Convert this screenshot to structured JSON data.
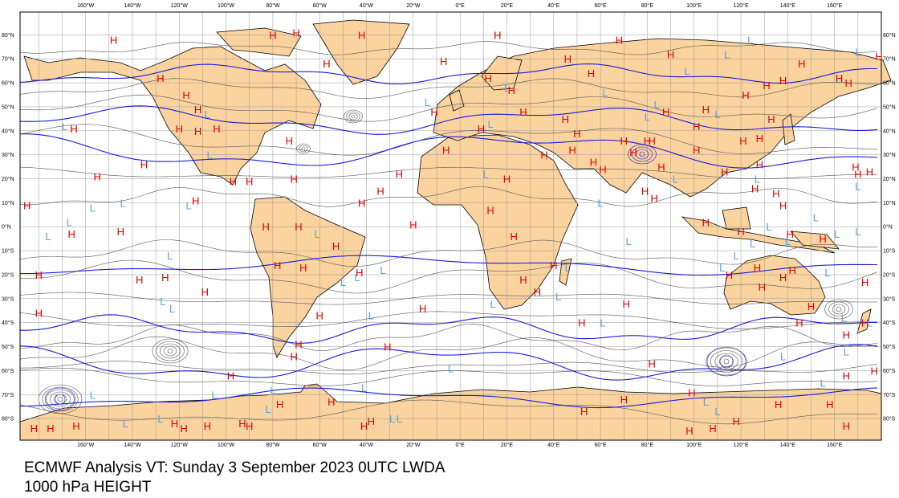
{
  "caption": {
    "line1": "ECMWF Analysis VT: Sunday 3 September 2023 0UTC LWDA",
    "line2": "1000 hPa HEIGHT"
  },
  "colors": {
    "land": "#fbd39e",
    "ocean": "#ffffff",
    "grid": "#9a9a9a",
    "coast": "#000000",
    "contour_minor": "#555555",
    "contour_major": "#1b1bd6",
    "high": "#e00000",
    "low": "#5aa0e0"
  },
  "axes": {
    "lon_labels": [
      "160°W",
      "140°W",
      "120°W",
      "100°W",
      "80°W",
      "60°W",
      "40°W",
      "20°W",
      "0°E",
      "20°E",
      "40°E",
      "60°E",
      "80°E",
      "100°E",
      "120°E",
      "140°E",
      "160°E"
    ],
    "lat_labels": [
      "80°N",
      "70°N",
      "60°N",
      "50°N",
      "40°N",
      "30°N",
      "20°N",
      "10°N",
      "0°N",
      "10°S",
      "20°S",
      "30°S",
      "40°S",
      "50°S",
      "60°S",
      "70°S",
      "80°S"
    ]
  },
  "centers": {
    "high": [
      {
        "label": "H",
        "lon": -148,
        "lat": 78
      },
      {
        "label": "H",
        "lon": -165,
        "lat": 41
      },
      {
        "label": "H",
        "lon": -135,
        "lat": 26
      },
      {
        "label": "H",
        "lon": -155,
        "lat": 21
      },
      {
        "label": "H",
        "lon": -113,
        "lat": 11
      },
      {
        "label": "H",
        "lon": -145,
        "lat": -2
      },
      {
        "label": "H",
        "lon": -185,
        "lat": 9
      },
      {
        "label": "H",
        "lon": -166,
        "lat": -3
      },
      {
        "label": "H",
        "lon": -180,
        "lat": -20
      },
      {
        "label": "H",
        "lon": -109,
        "lat": -27
      },
      {
        "label": "H",
        "lon": -126,
        "lat": -21
      },
      {
        "label": "H",
        "lon": -137,
        "lat": -22
      },
      {
        "label": "H",
        "lon": -180,
        "lat": -36
      },
      {
        "label": "H",
        "lon": -98,
        "lat": -62
      },
      {
        "label": "H",
        "lon": -122,
        "lat": -82
      },
      {
        "label": "H",
        "lon": -118,
        "lat": -84
      },
      {
        "label": "H",
        "lon": -175,
        "lat": -84
      },
      {
        "label": "H",
        "lon": -164,
        "lat": -83
      },
      {
        "label": "H",
        "lon": -108,
        "lat": -83
      },
      {
        "label": "H",
        "lon": -93,
        "lat": -82
      },
      {
        "label": "H",
        "lon": -77,
        "lat": -74
      },
      {
        "label": "H",
        "lon": -55,
        "lat": -73
      },
      {
        "label": "H",
        "lon": -90,
        "lat": -83
      },
      {
        "label": "H",
        "lon": -41,
        "lat": -83
      },
      {
        "label": "H",
        "lon": -38,
        "lat": -81
      },
      {
        "label": "H",
        "lon": -80,
        "lat": 80
      },
      {
        "label": "H",
        "lon": -70,
        "lat": 81
      },
      {
        "label": "H",
        "lon": -42,
        "lat": 80
      },
      {
        "label": "H",
        "lon": -57,
        "lat": 68
      },
      {
        "label": "H",
        "lon": -128,
        "lat": 62
      },
      {
        "label": "H",
        "lon": -117,
        "lat": 55
      },
      {
        "label": "H",
        "lon": -120,
        "lat": 41
      },
      {
        "label": "H",
        "lon": -104,
        "lat": 41
      },
      {
        "label": "H",
        "lon": -112,
        "lat": 40
      },
      {
        "label": "H",
        "lon": -112,
        "lat": 49
      },
      {
        "label": "H",
        "lon": -73,
        "lat": 36
      },
      {
        "label": "H",
        "lon": -97,
        "lat": 19
      },
      {
        "label": "H",
        "lon": -90,
        "lat": 19
      },
      {
        "label": "H",
        "lon": -71,
        "lat": 20
      },
      {
        "label": "H",
        "lon": -42,
        "lat": 10
      },
      {
        "label": "H",
        "lon": -83,
        "lat": 0
      },
      {
        "label": "H",
        "lon": -69,
        "lat": 0
      },
      {
        "label": "H",
        "lon": -53,
        "lat": -8
      },
      {
        "label": "H",
        "lon": -67,
        "lat": -17
      },
      {
        "label": "H",
        "lon": -78,
        "lat": -16
      },
      {
        "label": "H",
        "lon": -43,
        "lat": -19
      },
      {
        "label": "H",
        "lon": -60,
        "lat": -37
      },
      {
        "label": "H",
        "lon": -69,
        "lat": -49
      },
      {
        "label": "H",
        "lon": -71,
        "lat": -54
      },
      {
        "label": "H",
        "lon": -31,
        "lat": -50
      },
      {
        "label": "H",
        "lon": -16,
        "lat": -34
      },
      {
        "label": "H",
        "lon": -26,
        "lat": 22
      },
      {
        "label": "H",
        "lon": -20,
        "lat": 1
      },
      {
        "label": "H",
        "lon": -34,
        "lat": 15
      },
      {
        "label": "H",
        "lon": -11,
        "lat": 48
      },
      {
        "label": "H",
        "lon": -7,
        "lat": 69
      },
      {
        "label": "H",
        "lon": 16,
        "lat": 80
      },
      {
        "label": "H",
        "lon": 12,
        "lat": 62
      },
      {
        "label": "H",
        "lon": 22,
        "lat": 57
      },
      {
        "label": "H",
        "lon": 27,
        "lat": 48
      },
      {
        "label": "H",
        "lon": 9,
        "lat": 41
      },
      {
        "label": "H",
        "lon": -6,
        "lat": 32
      },
      {
        "label": "H",
        "lon": 36,
        "lat": 30
      },
      {
        "label": "H",
        "lon": 20,
        "lat": 20
      },
      {
        "label": "H",
        "lon": 13,
        "lat": 7
      },
      {
        "label": "H",
        "lon": 23,
        "lat": -4
      },
      {
        "label": "H",
        "lon": 27,
        "lat": -22
      },
      {
        "label": "H",
        "lon": 33,
        "lat": -27
      },
      {
        "label": "H",
        "lon": 40,
        "lat": -16
      },
      {
        "label": "H",
        "lon": 52,
        "lat": -40
      },
      {
        "label": "H",
        "lon": 71,
        "lat": -32
      },
      {
        "label": "H",
        "lon": 53,
        "lat": -77
      },
      {
        "label": "H",
        "lon": 70,
        "lat": -72
      },
      {
        "label": "H",
        "lon": 99,
        "lat": -69
      },
      {
        "label": "H",
        "lon": 82,
        "lat": -57
      },
      {
        "label": "H",
        "lon": 98,
        "lat": -85
      },
      {
        "label": "H",
        "lon": 108,
        "lat": -84
      },
      {
        "label": "H",
        "lon": 118,
        "lat": -81
      },
      {
        "label": "H",
        "lon": 136,
        "lat": -74
      },
      {
        "label": "H",
        "lon": 165,
        "lat": -83
      },
      {
        "label": "H",
        "lon": 158,
        "lat": -74
      },
      {
        "label": "H",
        "lon": 165,
        "lat": -62
      },
      {
        "label": "H",
        "lon": 177,
        "lat": -60
      },
      {
        "label": "H",
        "lon": 145,
        "lat": -40
      },
      {
        "label": "H",
        "lon": 173,
        "lat": -40
      },
      {
        "label": "H",
        "lon": 165,
        "lat": -45
      },
      {
        "label": "H",
        "lon": 150,
        "lat": -33
      },
      {
        "label": "H",
        "lon": 129,
        "lat": -25
      },
      {
        "label": "H",
        "lon": 115,
        "lat": -20
      },
      {
        "label": "H",
        "lon": 142,
        "lat": -18
      },
      {
        "label": "H",
        "lon": 127,
        "lat": -17
      },
      {
        "label": "H",
        "lon": 138,
        "lat": -21
      },
      {
        "label": "H",
        "lon": 173,
        "lat": -23
      },
      {
        "label": "H",
        "lon": 120,
        "lat": -2
      },
      {
        "label": "H",
        "lon": 141,
        "lat": -3
      },
      {
        "label": "H",
        "lon": 155,
        "lat": -5
      },
      {
        "label": "H",
        "lon": 105,
        "lat": 2
      },
      {
        "label": "H",
        "lon": 138,
        "lat": 9
      },
      {
        "label": "H",
        "lon": 135,
        "lat": 14
      },
      {
        "label": "H",
        "lon": 169,
        "lat": 25
      },
      {
        "label": "H",
        "lon": 170,
        "lat": 22
      },
      {
        "label": "H",
        "lon": 128,
        "lat": 26
      },
      {
        "label": "H",
        "lon": 126,
        "lat": 16
      },
      {
        "label": "H",
        "lon": 113,
        "lat": 23
      },
      {
        "label": "H",
        "lon": 101,
        "lat": 32
      },
      {
        "label": "H",
        "lon": 82,
        "lat": 36
      },
      {
        "label": "H",
        "lon": 86,
        "lat": 25
      },
      {
        "label": "H",
        "lon": 80,
        "lat": 36
      },
      {
        "label": "H",
        "lon": 70,
        "lat": 36
      },
      {
        "label": "H",
        "lon": 74,
        "lat": 31
      },
      {
        "label": "H",
        "lon": 61,
        "lat": 24
      },
      {
        "label": "H",
        "lon": 50,
        "lat": 39
      },
      {
        "label": "H",
        "lon": 48,
        "lat": 32
      },
      {
        "label": "H",
        "lon": 45,
        "lat": 45
      },
      {
        "label": "H",
        "lon": 57,
        "lat": 27
      },
      {
        "label": "H",
        "lon": 79,
        "lat": 15
      },
      {
        "label": "H",
        "lon": 83,
        "lat": 12
      },
      {
        "label": "H",
        "lon": 101,
        "lat": 42
      },
      {
        "label": "H",
        "lon": 88,
        "lat": 48
      },
      {
        "label": "H",
        "lon": 105,
        "lat": 49
      },
      {
        "label": "H",
        "lon": 122,
        "lat": 55
      },
      {
        "label": "H",
        "lon": 138,
        "lat": 61
      },
      {
        "label": "H",
        "lon": 131,
        "lat": 59
      },
      {
        "label": "H",
        "lon": 121,
        "lat": 36
      },
      {
        "label": "H",
        "lon": 128,
        "lat": 37
      },
      {
        "label": "H",
        "lon": 133,
        "lat": 45
      },
      {
        "label": "H",
        "lon": 146,
        "lat": 68
      },
      {
        "label": "H",
        "lon": 162,
        "lat": 62
      },
      {
        "label": "H",
        "lon": 166,
        "lat": 60
      },
      {
        "label": "H",
        "lon": 68,
        "lat": 78
      },
      {
        "label": "H",
        "lon": 90,
        "lat": 72
      },
      {
        "label": "H",
        "lon": 56,
        "lat": 64
      },
      {
        "label": "H",
        "lon": 46,
        "lat": 70
      },
      {
        "label": "H",
        "lon": 179,
        "lat": 71
      },
      {
        "label": "H",
        "lon": 175,
        "lat": 23
      },
      {
        "label": "H",
        "lon": -182,
        "lat": -84
      }
    ],
    "low": [
      {
        "label": "L",
        "lon": -169,
        "lat": 42
      },
      {
        "label": "L",
        "lon": -167,
        "lat": 2
      },
      {
        "label": "L",
        "lon": -157,
        "lat": 8
      },
      {
        "label": "L",
        "lon": -144,
        "lat": 10
      },
      {
        "label": "L",
        "lon": -176,
        "lat": -4
      },
      {
        "label": "L",
        "lon": -124,
        "lat": -12
      },
      {
        "label": "L",
        "lon": -116,
        "lat": 9
      },
      {
        "label": "L",
        "lon": -108,
        "lat": 47
      },
      {
        "label": "L",
        "lon": -107,
        "lat": 30
      },
      {
        "label": "L",
        "lon": -123,
        "lat": -34
      },
      {
        "label": "L",
        "lon": -61,
        "lat": -3
      },
      {
        "label": "L",
        "lon": -44,
        "lat": -21
      },
      {
        "label": "L",
        "lon": -50,
        "lat": -23
      },
      {
        "label": "L",
        "lon": -33,
        "lat": -18
      },
      {
        "label": "L",
        "lon": -38,
        "lat": -37
      },
      {
        "label": "L",
        "lon": -4,
        "lat": -59
      },
      {
        "label": "L",
        "lon": -29,
        "lat": -80
      },
      {
        "label": "L",
        "lon": -26,
        "lat": -80
      },
      {
        "label": "L",
        "lon": -14,
        "lat": 52
      },
      {
        "label": "L",
        "lon": -127,
        "lat": -31
      },
      {
        "label": "L",
        "lon": -143,
        "lat": -82
      },
      {
        "label": "L",
        "lon": -128,
        "lat": -80
      },
      {
        "label": "L",
        "lon": -82,
        "lat": -76
      },
      {
        "label": "L",
        "lon": -80,
        "lat": -68
      },
      {
        "label": "L",
        "lon": -41,
        "lat": -67
      },
      {
        "label": "L",
        "lon": 14,
        "lat": -32
      },
      {
        "label": "L",
        "lon": 42,
        "lat": -29
      },
      {
        "label": "L",
        "lon": 61,
        "lat": -40
      },
      {
        "label": "L",
        "lon": 105,
        "lat": -73
      },
      {
        "label": "L",
        "lon": 110,
        "lat": -77
      },
      {
        "label": "L",
        "lon": 138,
        "lat": -54
      },
      {
        "label": "L",
        "lon": 155,
        "lat": -65
      },
      {
        "label": "L",
        "lon": 164,
        "lat": -38
      },
      {
        "label": "L",
        "lon": 165,
        "lat": -52
      },
      {
        "label": "L",
        "lon": 175,
        "lat": -40
      },
      {
        "label": "L",
        "lon": 170,
        "lat": 17
      },
      {
        "label": "L",
        "lon": 152,
        "lat": 4
      },
      {
        "label": "L",
        "lon": 161,
        "lat": -3
      },
      {
        "label": "L",
        "lon": 157,
        "lat": -19
      },
      {
        "label": "L",
        "lon": 140,
        "lat": -6
      },
      {
        "label": "L",
        "lon": 125,
        "lat": -7
      },
      {
        "label": "L",
        "lon": 132,
        "lat": 0
      },
      {
        "label": "L",
        "lon": 118,
        "lat": -12
      },
      {
        "label": "L",
        "lon": 112,
        "lat": -17
      },
      {
        "label": "L",
        "lon": 92,
        "lat": 20
      },
      {
        "label": "L",
        "lon": 72,
        "lat": -6
      },
      {
        "label": "L",
        "lon": 60,
        "lat": 10
      },
      {
        "label": "L",
        "lon": 46,
        "lat": -17
      },
      {
        "label": "L",
        "lon": 11,
        "lat": 22
      },
      {
        "label": "L",
        "lon": 13,
        "lat": 43
      },
      {
        "label": "L",
        "lon": 20,
        "lat": 58
      },
      {
        "label": "L",
        "lon": 62,
        "lat": 56
      },
      {
        "label": "L",
        "lon": 80,
        "lat": 46
      },
      {
        "label": "L",
        "lon": 97,
        "lat": 65
      },
      {
        "label": "L",
        "lon": 114,
        "lat": 72
      },
      {
        "label": "L",
        "lon": 124,
        "lat": 78
      },
      {
        "label": "L",
        "lon": 170,
        "lat": 73
      },
      {
        "label": "L",
        "lon": 110,
        "lat": 47
      },
      {
        "label": "L",
        "lon": 84,
        "lat": 51
      },
      {
        "label": "L",
        "lon": 127,
        "lat": 20
      },
      {
        "label": "L",
        "lon": 170,
        "lat": -2
      },
      {
        "label": "L",
        "lon": -105,
        "lat": -70
      },
      {
        "label": "L",
        "lon": -157,
        "lat": -70
      }
    ]
  }
}
